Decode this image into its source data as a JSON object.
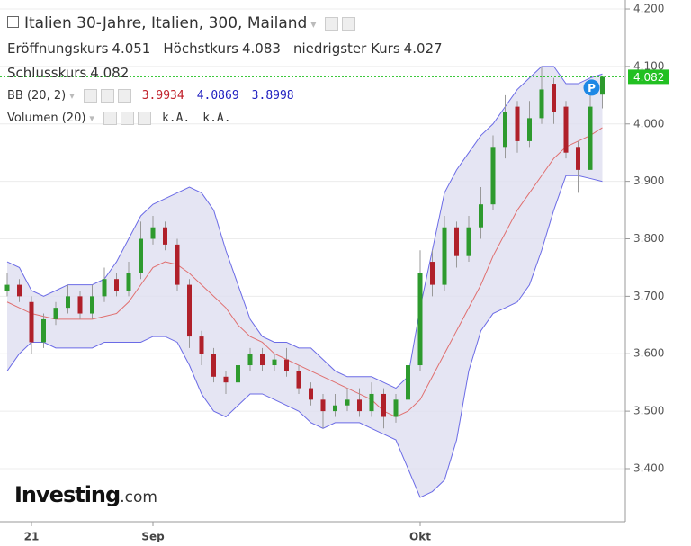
{
  "header": {
    "title": "Italien 30-Jahre, Italien, 300, Mailand",
    "open_label": "Eröffnungskurs",
    "open": 4.051,
    "high_label": "Höchstkurs",
    "high": 4.083,
    "low_label": "niedrigster Kurs",
    "low": 4.027,
    "close_label": "Schlusskurs",
    "close": 4.082,
    "bb_label": "BB (20, 2)",
    "bb_mid": 3.9934,
    "bb_upper": 4.0869,
    "bb_lower": 3.8998,
    "vol_label": "Volumen (20)",
    "vol_values": [
      "k.A.",
      "k.A."
    ],
    "marker": "P"
  },
  "logo": {
    "name": "Investing",
    "suffix": ".com"
  },
  "chart_data": {
    "type": "candlestick",
    "categories": [
      null,
      null,
      "21",
      null,
      null,
      null,
      null,
      null,
      null,
      null,
      null,
      null,
      "Sep",
      null,
      null,
      null,
      null,
      null,
      null,
      null,
      null,
      null,
      null,
      null,
      null,
      null,
      null,
      null,
      null,
      null,
      null,
      null,
      null,
      null,
      "Okt",
      null,
      null,
      null,
      null,
      null,
      null,
      null,
      null,
      null,
      null,
      null,
      null,
      null,
      null,
      null
    ],
    "open": [
      3.71,
      3.72,
      3.69,
      3.62,
      3.66,
      3.68,
      3.7,
      3.67,
      3.7,
      3.73,
      3.71,
      3.74,
      3.8,
      3.82,
      3.79,
      3.72,
      3.63,
      3.6,
      3.56,
      3.55,
      3.58,
      3.6,
      3.58,
      3.59,
      3.57,
      3.54,
      3.52,
      3.5,
      3.51,
      3.52,
      3.5,
      3.53,
      3.49,
      3.52,
      3.58,
      3.76,
      3.72,
      3.82,
      3.77,
      3.82,
      3.86,
      3.96,
      4.03,
      3.97,
      4.01,
      4.07,
      4.03,
      3.96,
      3.92,
      4.051
    ],
    "high": [
      3.74,
      3.73,
      3.7,
      3.67,
      3.69,
      3.72,
      3.71,
      3.72,
      3.75,
      3.74,
      3.76,
      3.83,
      3.84,
      3.83,
      3.8,
      3.73,
      3.64,
      3.61,
      3.57,
      3.59,
      3.61,
      3.61,
      3.6,
      3.61,
      3.58,
      3.55,
      3.53,
      3.53,
      3.54,
      3.54,
      3.55,
      3.54,
      3.53,
      3.59,
      3.78,
      3.78,
      3.84,
      3.83,
      3.84,
      3.89,
      3.98,
      4.05,
      4.04,
      4.04,
      4.1,
      4.08,
      4.04,
      3.97,
      4.05,
      4.083
    ],
    "low": [
      3.7,
      3.69,
      3.6,
      3.61,
      3.65,
      3.67,
      3.66,
      3.66,
      3.69,
      3.7,
      3.7,
      3.73,
      3.79,
      3.78,
      3.71,
      3.61,
      3.58,
      3.55,
      3.53,
      3.54,
      3.57,
      3.57,
      3.57,
      3.56,
      3.53,
      3.51,
      3.47,
      3.49,
      3.5,
      3.49,
      3.49,
      3.47,
      3.48,
      3.51,
      3.57,
      3.7,
      3.71,
      3.75,
      3.76,
      3.8,
      3.85,
      3.94,
      3.95,
      3.96,
      4.0,
      4.0,
      3.94,
      3.88,
      3.92,
      4.027
    ],
    "close": [
      3.72,
      3.7,
      3.62,
      3.66,
      3.68,
      3.7,
      3.67,
      3.7,
      3.73,
      3.71,
      3.74,
      3.8,
      3.82,
      3.79,
      3.72,
      3.63,
      3.6,
      3.56,
      3.55,
      3.58,
      3.6,
      3.58,
      3.59,
      3.57,
      3.54,
      3.52,
      3.5,
      3.51,
      3.52,
      3.5,
      3.53,
      3.49,
      3.52,
      3.58,
      3.74,
      3.72,
      3.82,
      3.77,
      3.82,
      3.86,
      3.96,
      4.02,
      3.97,
      4.01,
      4.06,
      4.02,
      3.95,
      3.92,
      4.03,
      4.082
    ],
    "bb_middle": [
      3.69,
      3.68,
      3.67,
      3.665,
      3.66,
      3.66,
      3.66,
      3.66,
      3.665,
      3.67,
      3.69,
      3.72,
      3.75,
      3.76,
      3.755,
      3.74,
      3.72,
      3.7,
      3.68,
      3.65,
      3.63,
      3.62,
      3.6,
      3.59,
      3.58,
      3.57,
      3.56,
      3.55,
      3.54,
      3.53,
      3.52,
      3.5,
      3.49,
      3.5,
      3.52,
      3.56,
      3.6,
      3.64,
      3.68,
      3.72,
      3.77,
      3.81,
      3.85,
      3.88,
      3.91,
      3.94,
      3.96,
      3.97,
      3.98,
      3.9934
    ],
    "bb_upper": [
      3.76,
      3.75,
      3.71,
      3.7,
      3.71,
      3.72,
      3.72,
      3.72,
      3.73,
      3.76,
      3.8,
      3.84,
      3.86,
      3.87,
      3.88,
      3.89,
      3.88,
      3.85,
      3.78,
      3.72,
      3.66,
      3.63,
      3.62,
      3.62,
      3.61,
      3.61,
      3.59,
      3.57,
      3.56,
      3.56,
      3.56,
      3.55,
      3.54,
      3.56,
      3.68,
      3.78,
      3.88,
      3.92,
      3.95,
      3.98,
      4.0,
      4.03,
      4.06,
      4.08,
      4.1,
      4.1,
      4.07,
      4.07,
      4.08,
      4.0869
    ],
    "bb_lower": [
      3.57,
      3.6,
      3.62,
      3.62,
      3.61,
      3.61,
      3.61,
      3.61,
      3.62,
      3.62,
      3.62,
      3.62,
      3.63,
      3.63,
      3.62,
      3.58,
      3.53,
      3.5,
      3.49,
      3.51,
      3.53,
      3.53,
      3.52,
      3.51,
      3.5,
      3.48,
      3.47,
      3.48,
      3.48,
      3.48,
      3.47,
      3.46,
      3.45,
      3.4,
      3.35,
      3.36,
      3.38,
      3.45,
      3.57,
      3.64,
      3.67,
      3.68,
      3.69,
      3.72,
      3.78,
      3.85,
      3.91,
      3.91,
      3.905,
      3.8998
    ],
    "ylim": [
      3.3076,
      4.2157
    ],
    "yticks": [
      {
        "value": 3.4,
        "label": "3.400"
      },
      {
        "value": 3.5,
        "label": "3.500"
      },
      {
        "value": 3.6,
        "label": "3.600"
      },
      {
        "value": 3.7,
        "label": "3.700"
      },
      {
        "value": 3.8,
        "label": "3.800"
      },
      {
        "value": 3.9,
        "label": "3.900"
      },
      {
        "value": 4.0,
        "label": "4.000"
      },
      {
        "value": 4.1,
        "label": "4.100"
      },
      {
        "value": 4.2,
        "label": "4.200"
      }
    ],
    "colors": {
      "up": "#2e9a2e",
      "down": "#b0202a",
      "band_line": "#6b6be6",
      "band_fill": "#dedff0",
      "middle": "#e07070",
      "last": "#22c022"
    }
  }
}
